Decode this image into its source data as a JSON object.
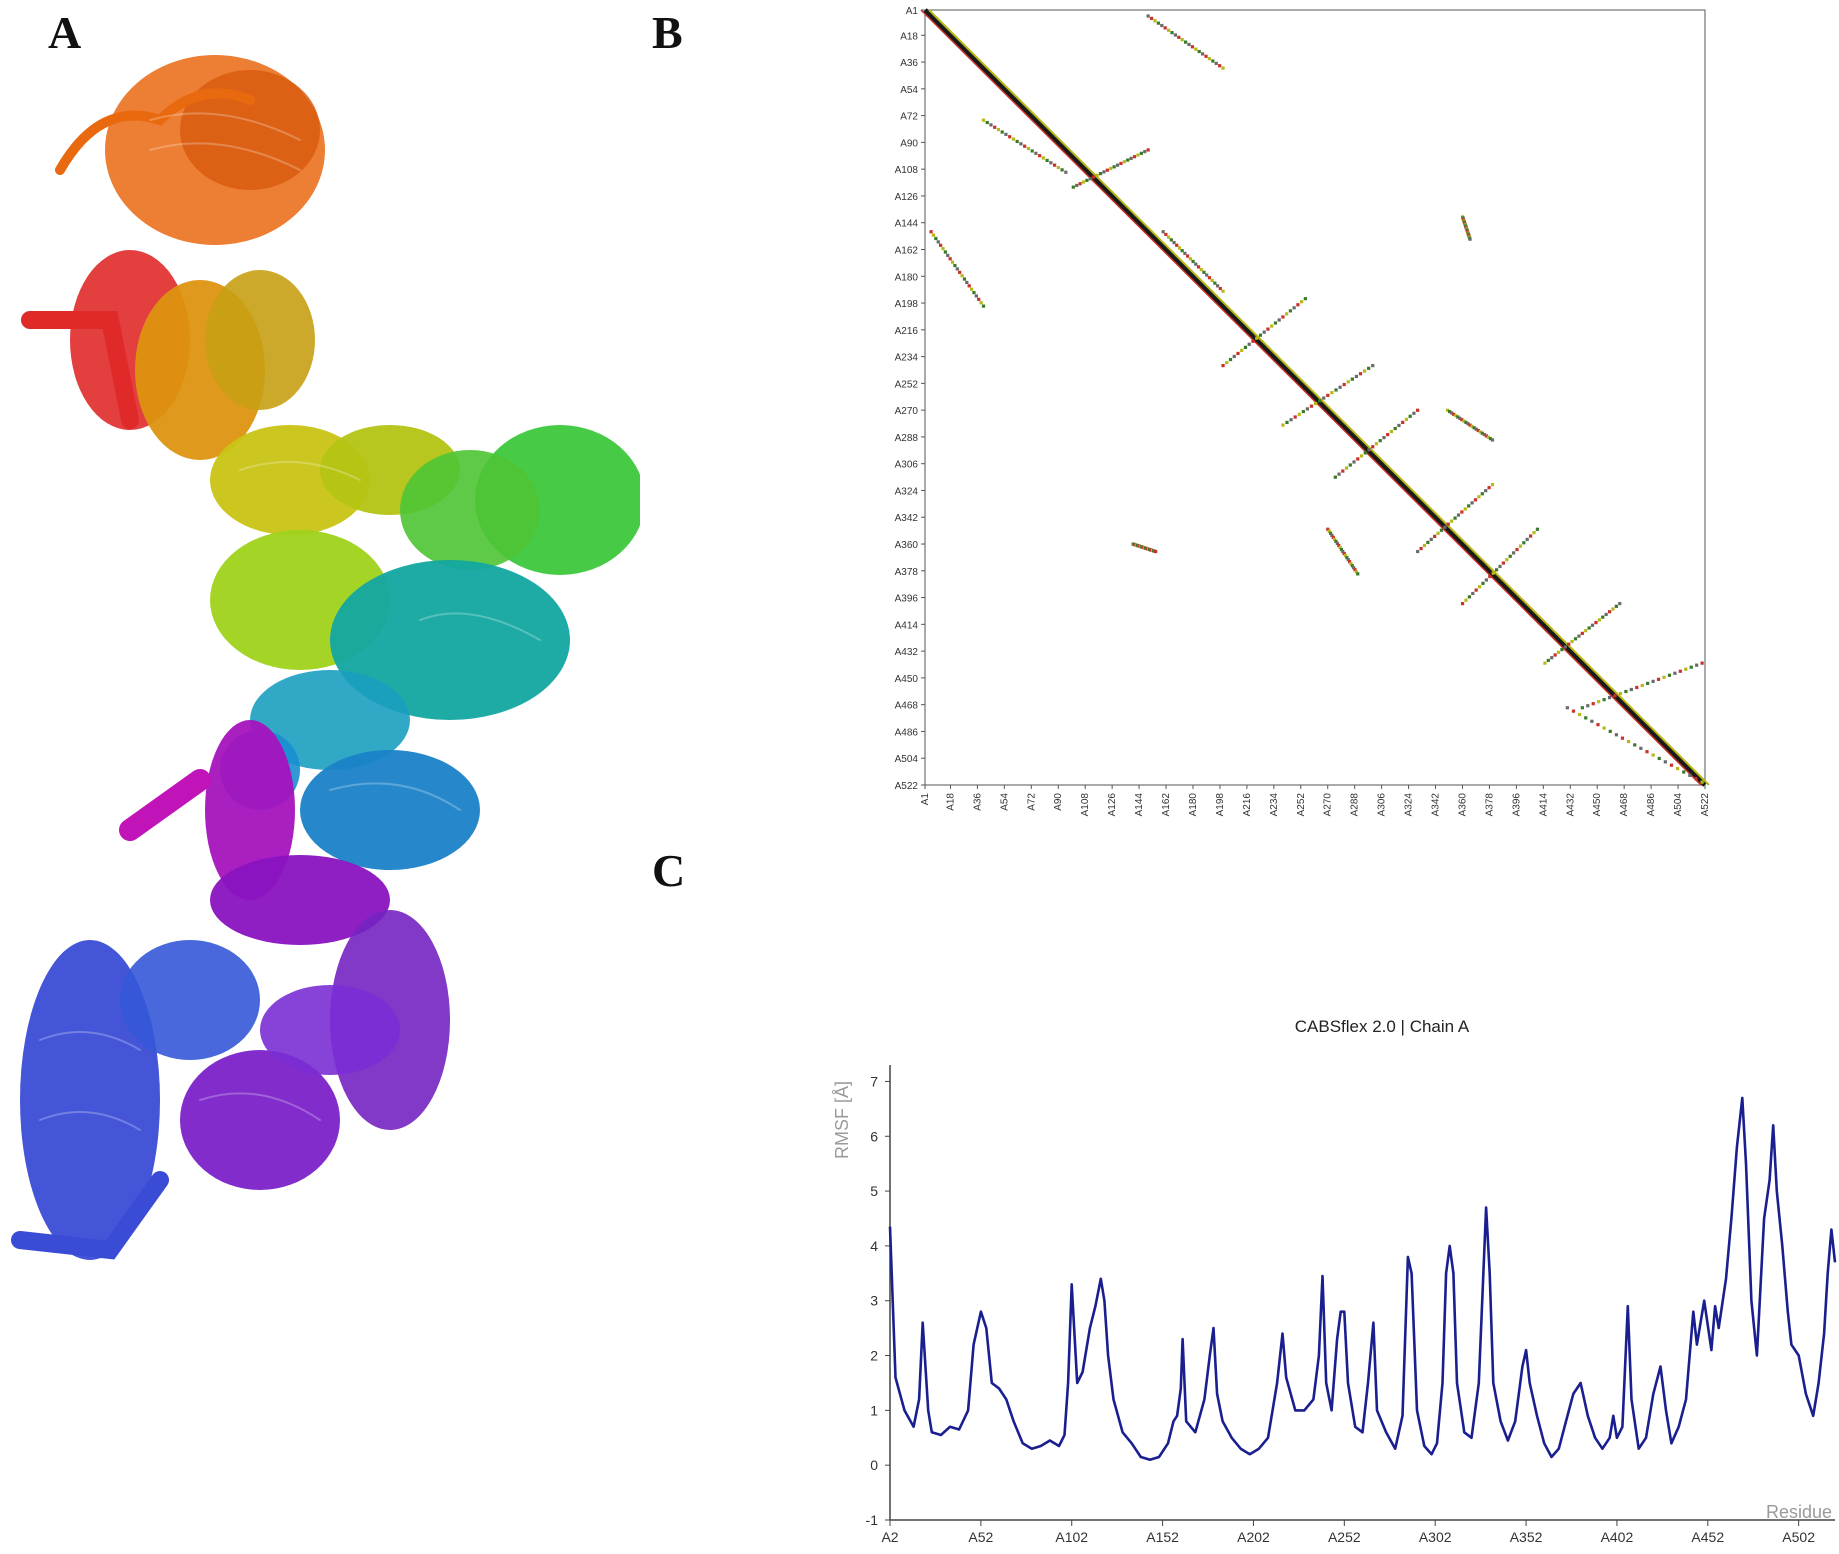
{
  "panels": {
    "a": {
      "label": "A"
    },
    "b": {
      "label": "B"
    },
    "c": {
      "label": "C"
    }
  },
  "chart_data": [
    {
      "panel": "A",
      "type": "other",
      "description": "",
      "colors": [
        "#e02a2a",
        "#e9690f",
        "#dd9410",
        "#c8c414",
        "#9ed21a",
        "#3dc83c",
        "#13a6a0",
        "#1a82c8",
        "#3a4cd6",
        "#7424c2",
        "#a513bd"
      ]
    },
    {
      "panel": "B",
      "type": "heatmap",
      "title": "",
      "axis_ticks": [
        "A1",
        "A18",
        "A36",
        "A54",
        "A72",
        "A90",
        "A108",
        "A126",
        "A144",
        "A162",
        "A180",
        "A198",
        "A216",
        "A234",
        "A252",
        "A270",
        "A288",
        "A306",
        "A324",
        "A342",
        "A360",
        "A378",
        "A396",
        "A414",
        "A432",
        "A450",
        "A468",
        "A486",
        "A504",
        "A522"
      ],
      "range": [
        1,
        522
      ],
      "grid": false,
      "colors": {
        "diagonal": "#1a1a1a",
        "contact_high": "#c83228",
        "contact_mid": "#b8b818",
        "contact_low": "#3a7a2a"
      },
      "contact_segments": [
        {
          "start": [
            1,
            1
          ],
          "end": [
            522,
            522
          ],
          "style": "diagonal"
        },
        {
          "start": [
            40,
            75
          ],
          "end": [
            95,
            110
          ],
          "style": "dotted"
        },
        {
          "start": [
            100,
            120
          ],
          "end": [
            150,
            95
          ],
          "style": "dotted"
        },
        {
          "start": [
            160,
            150
          ],
          "end": [
            200,
            190
          ],
          "style": "dotted"
        },
        {
          "start": [
            200,
            240
          ],
          "end": [
            255,
            195
          ],
          "style": "dotted"
        },
        {
          "start": [
            240,
            280
          ],
          "end": [
            300,
            240
          ],
          "style": "dotted"
        },
        {
          "start": [
            275,
            315
          ],
          "end": [
            330,
            270
          ],
          "style": "dotted"
        },
        {
          "start": [
            330,
            365
          ],
          "end": [
            380,
            320
          ],
          "style": "dotted"
        },
        {
          "start": [
            360,
            400
          ],
          "end": [
            410,
            350
          ],
          "style": "dotted"
        },
        {
          "start": [
            415,
            440
          ],
          "end": [
            465,
            400
          ],
          "style": "dotted"
        },
        {
          "start": [
            440,
            470
          ],
          "end": [
            520,
            440
          ],
          "style": "dotted"
        },
        {
          "start": [
            150,
            5
          ],
          "end": [
            200,
            40
          ],
          "style": "dotted"
        },
        {
          "start": [
            5,
            150
          ],
          "end": [
            40,
            200
          ],
          "style": "dotted"
        },
        {
          "start": [
            360,
            140
          ],
          "end": [
            365,
            155
          ],
          "style": "dotted"
        },
        {
          "start": [
            140,
            360
          ],
          "end": [
            155,
            365
          ],
          "style": "dotted"
        },
        {
          "start": [
            430,
            470
          ],
          "end": [
            520,
            520
          ],
          "style": "dotted"
        },
        {
          "start": [
            270,
            350
          ],
          "end": [
            290,
            380
          ],
          "style": "dotted"
        },
        {
          "start": [
            350,
            270
          ],
          "end": [
            380,
            290
          ],
          "style": "dotted"
        }
      ]
    },
    {
      "panel": "C",
      "type": "line",
      "title": "CABSflex 2.0 | Chain A",
      "xlabel": "Residue",
      "ylabel": "RMSF [Å]",
      "x_ticks": [
        "A2",
        "A52",
        "A102",
        "A152",
        "A202",
        "A252",
        "A302",
        "A352",
        "A402",
        "A452",
        "A502"
      ],
      "y_ticks": [
        "-1",
        "0",
        "1",
        "2",
        "3",
        "4",
        "5",
        "6",
        "7"
      ],
      "ylim": [
        -1,
        7.3
      ],
      "xlim": [
        2,
        522
      ],
      "series": [
        {
          "color": "#1a1f8f",
          "points": [
            [
              2,
              4.35
            ],
            [
              5,
              1.6
            ],
            [
              10,
              1.0
            ],
            [
              15,
              0.7
            ],
            [
              18,
              1.2
            ],
            [
              20,
              2.6
            ],
            [
              23,
              1.0
            ],
            [
              25,
              0.6
            ],
            [
              30,
              0.55
            ],
            [
              35,
              0.7
            ],
            [
              40,
              0.65
            ],
            [
              45,
              1.0
            ],
            [
              48,
              2.2
            ],
            [
              52,
              2.8
            ],
            [
              55,
              2.5
            ],
            [
              58,
              1.5
            ],
            [
              62,
              1.4
            ],
            [
              66,
              1.2
            ],
            [
              70,
              0.8
            ],
            [
              75,
              0.4
            ],
            [
              80,
              0.3
            ],
            [
              85,
              0.35
            ],
            [
              90,
              0.45
            ],
            [
              95,
              0.35
            ],
            [
              98,
              0.55
            ],
            [
              100,
              1.5
            ],
            [
              102,
              3.3
            ],
            [
              105,
              1.5
            ],
            [
              108,
              1.7
            ],
            [
              112,
              2.5
            ],
            [
              115,
              2.9
            ],
            [
              118,
              3.4
            ],
            [
              120,
              3.0
            ],
            [
              122,
              2.0
            ],
            [
              125,
              1.2
            ],
            [
              130,
              0.6
            ],
            [
              135,
              0.4
            ],
            [
              140,
              0.15
            ],
            [
              145,
              0.1
            ],
            [
              150,
              0.15
            ],
            [
              155,
              0.4
            ],
            [
              158,
              0.8
            ],
            [
              160,
              0.9
            ],
            [
              162,
              1.4
            ],
            [
              163,
              2.3
            ],
            [
              165,
              0.8
            ],
            [
              170,
              0.6
            ],
            [
              175,
              1.2
            ],
            [
              178,
              2.0
            ],
            [
              180,
              2.5
            ],
            [
              182,
              1.3
            ],
            [
              185,
              0.8
            ],
            [
              190,
              0.5
            ],
            [
              195,
              0.3
            ],
            [
              200,
              0.2
            ],
            [
              205,
              0.3
            ],
            [
              210,
              0.5
            ],
            [
              215,
              1.5
            ],
            [
              218,
              2.4
            ],
            [
              220,
              1.6
            ],
            [
              225,
              1.0
            ],
            [
              230,
              1.0
            ],
            [
              235,
              1.2
            ],
            [
              238,
              2.0
            ],
            [
              240,
              3.45
            ],
            [
              242,
              1.5
            ],
            [
              245,
              1.0
            ],
            [
              248,
              2.3
            ],
            [
              250,
              2.8
            ],
            [
              252,
              2.8
            ],
            [
              254,
              1.5
            ],
            [
              258,
              0.7
            ],
            [
              262,
              0.6
            ],
            [
              265,
              1.5
            ],
            [
              268,
              2.6
            ],
            [
              270,
              1.0
            ],
            [
              275,
              0.6
            ],
            [
              280,
              0.3
            ],
            [
              284,
              0.9
            ],
            [
              287,
              3.8
            ],
            [
              289,
              3.5
            ],
            [
              292,
              1.0
            ],
            [
              296,
              0.35
            ],
            [
              300,
              0.2
            ],
            [
              303,
              0.4
            ],
            [
              306,
              1.5
            ],
            [
              308,
              3.5
            ],
            [
              310,
              4.0
            ],
            [
              312,
              3.5
            ],
            [
              314,
              1.5
            ],
            [
              318,
              0.6
            ],
            [
              322,
              0.5
            ],
            [
              326,
              1.5
            ],
            [
              330,
              4.7
            ],
            [
              332,
              3.5
            ],
            [
              334,
              1.5
            ],
            [
              338,
              0.8
            ],
            [
              342,
              0.45
            ],
            [
              346,
              0.8
            ],
            [
              350,
              1.8
            ],
            [
              352,
              2.1
            ],
            [
              354,
              1.5
            ],
            [
              358,
              0.9
            ],
            [
              362,
              0.4
            ],
            [
              366,
              0.15
            ],
            [
              370,
              0.3
            ],
            [
              374,
              0.8
            ],
            [
              378,
              1.3
            ],
            [
              382,
              1.5
            ],
            [
              386,
              0.9
            ],
            [
              390,
              0.5
            ],
            [
              394,
              0.3
            ],
            [
              398,
              0.5
            ],
            [
              400,
              0.9
            ],
            [
              402,
              0.5
            ],
            [
              405,
              0.7
            ],
            [
              408,
              2.9
            ],
            [
              410,
              1.2
            ],
            [
              414,
              0.3
            ],
            [
              418,
              0.5
            ],
            [
              422,
              1.3
            ],
            [
              426,
              1.8
            ],
            [
              429,
              1.0
            ],
            [
              432,
              0.4
            ],
            [
              436,
              0.7
            ],
            [
              440,
              1.2
            ],
            [
              444,
              2.8
            ],
            [
              446,
              2.2
            ],
            [
              450,
              3.0
            ],
            [
              454,
              2.1
            ],
            [
              456,
              2.9
            ],
            [
              458,
              2.5
            ],
            [
              462,
              3.4
            ],
            [
              465,
              4.5
            ],
            [
              468,
              5.8
            ],
            [
              471,
              6.7
            ],
            [
              473,
              5.5
            ],
            [
              476,
              3.0
            ],
            [
              479,
              2.0
            ],
            [
              483,
              4.5
            ],
            [
              486,
              5.2
            ],
            [
              488,
              6.2
            ],
            [
              490,
              5.0
            ],
            [
              493,
              4.0
            ],
            [
              496,
              2.8
            ],
            [
              498,
              2.2
            ],
            [
              502,
              2.0
            ],
            [
              506,
              1.3
            ],
            [
              510,
              0.9
            ],
            [
              513,
              1.5
            ],
            [
              516,
              2.4
            ],
            [
              518,
              3.5
            ],
            [
              520,
              4.3
            ],
            [
              522,
              3.7
            ]
          ]
        }
      ]
    }
  ]
}
